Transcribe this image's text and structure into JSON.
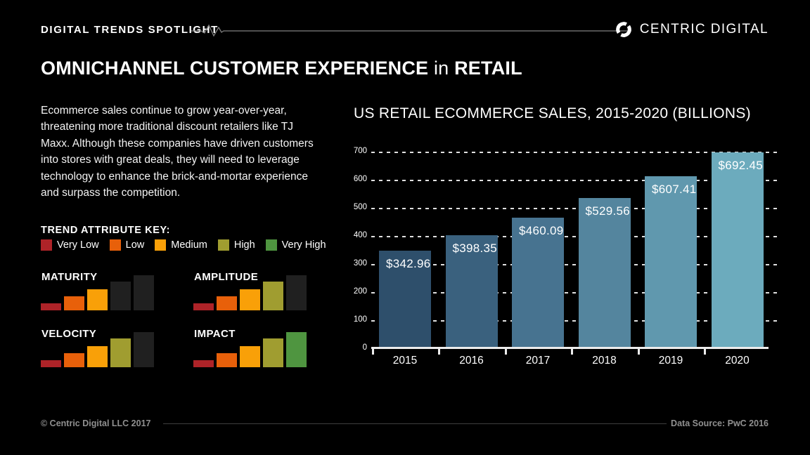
{
  "header": {
    "eyebrow": "DIGITAL TRENDS SPOTLIGHT",
    "brand": "CENTRIC DIGITAL"
  },
  "title": {
    "main": "OMNICHANNEL CUSTOMER EXPERIENCE",
    "connector": "in",
    "tail": "RETAIL"
  },
  "intro": "Ecommerce sales continue to grow year-over-year, threatening more traditional discount retailers like TJ Maxx. Although these companies have driven customers into stores with great deals, they will need to leverage technology to enhance the brick-and-mortar experience and surpass the competition.",
  "trend_key": {
    "label": "TREND ATTRIBUTE KEY:",
    "levels": [
      {
        "label": "Very Low",
        "color": "#ae2328"
      },
      {
        "label": "Low",
        "color": "#e8600a"
      },
      {
        "label": "Medium",
        "color": "#f9a008"
      },
      {
        "label": "High",
        "color": "#a09d30"
      },
      {
        "label": "Very High",
        "color": "#4f9540"
      }
    ],
    "inactive_color": "#202020"
  },
  "attributes": [
    {
      "label": "MATURITY",
      "level": 3
    },
    {
      "label": "AMPLITUDE",
      "level": 4
    },
    {
      "label": "VELOCITY",
      "level": 4
    },
    {
      "label": "IMPACT",
      "level": 5
    }
  ],
  "chart_data": {
    "type": "bar",
    "title": "US RETAIL ECOMMERCE SALES, 2015-2020 (BILLIONS)",
    "categories": [
      "2015",
      "2016",
      "2017",
      "2018",
      "2019",
      "2020"
    ],
    "values": [
      342.96,
      398.35,
      460.09,
      529.56,
      607.41,
      692.45
    ],
    "value_labels": [
      "$342.96",
      "$398.35",
      "$460.09",
      "$529.56",
      "$607.41",
      "$692.45"
    ],
    "bar_colors": [
      "#2e4f6b",
      "#3a617e",
      "#477390",
      "#54859e",
      "#6098ae",
      "#6cabbd"
    ],
    "ylabel": "",
    "xlabel": "",
    "ylim": [
      0,
      700
    ],
    "y_ticks": [
      0,
      100,
      200,
      300,
      400,
      500,
      600,
      700
    ],
    "grid": "dashed-horizontal",
    "legend_position": "none"
  },
  "footer": {
    "left": "© Centric Digital LLC 2017",
    "right": "Data Source: PwC 2016"
  }
}
